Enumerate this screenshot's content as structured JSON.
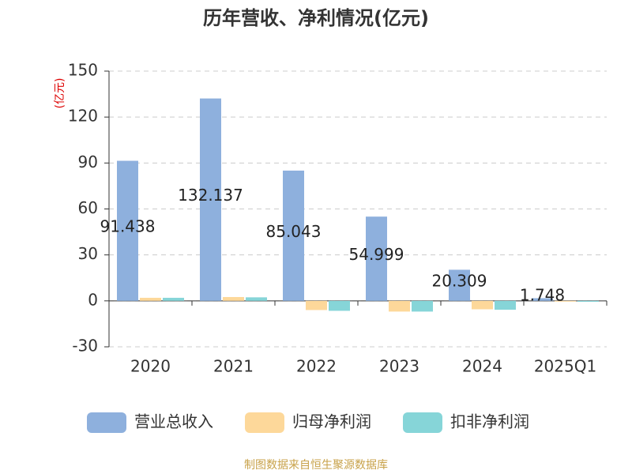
{
  "chart_data": {
    "type": "bar",
    "title": "历年营收、净利情况(亿元)",
    "y_unit": "(亿元)",
    "categories": [
      "2020",
      "2021",
      "2022",
      "2023",
      "2024",
      "2025Q1"
    ],
    "series": [
      {
        "name": "营业总收入",
        "color": "#8eb0dd",
        "values": [
          91.438,
          132.137,
          85.043,
          54.999,
          20.309,
          1.748
        ],
        "show_labels": true
      },
      {
        "name": "归母净利润",
        "color": "#fdd89a",
        "values": [
          2.0,
          2.5,
          -6.0,
          -7.0,
          -5.5,
          -0.5
        ]
      },
      {
        "name": "扣非净利润",
        "color": "#86d5d8",
        "values": [
          2.0,
          2.3,
          -6.5,
          -7.0,
          -5.8,
          -0.6
        ]
      }
    ],
    "ylim": [
      -30,
      150
    ],
    "yticks": [
      -30,
      0,
      30,
      60,
      90,
      120,
      150
    ],
    "grid": true,
    "source": "制图数据来自恒生聚源数据库"
  }
}
